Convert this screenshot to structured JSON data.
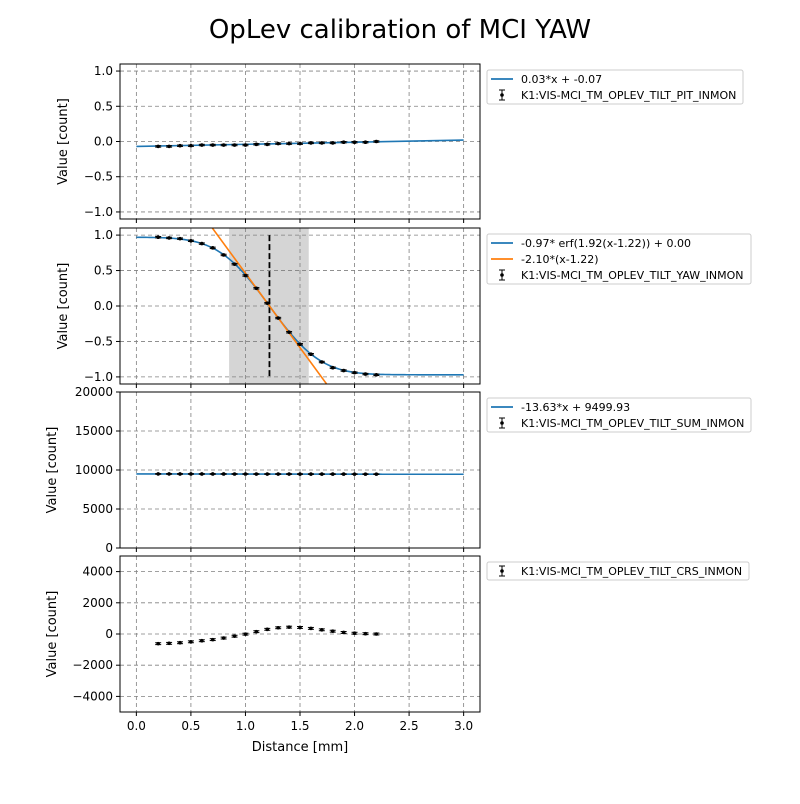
{
  "figure": {
    "title": "OpLev calibration of MCI YAW",
    "xlabel": "Distance [mm]"
  },
  "chart_data": [
    {
      "type": "line",
      "name": "pit",
      "ylabel": "Value [count]",
      "xlim": [
        -0.15,
        3.15
      ],
      "ylim": [
        -1.1,
        1.1
      ],
      "xticks": [
        0.0,
        0.5,
        1.0,
        1.5,
        2.0,
        2.5,
        3.0
      ],
      "yticks": [
        -1.0,
        -0.5,
        0.0,
        0.5,
        1.0
      ],
      "ytick_labels": [
        "−1.0",
        "−0.5",
        "0.0",
        "0.5",
        "1.0"
      ],
      "grid": true,
      "legend_position": "outside-right-top",
      "x": [
        0.2,
        0.3,
        0.4,
        0.5,
        0.6,
        0.7,
        0.8,
        0.9,
        1.0,
        1.1,
        1.2,
        1.3,
        1.4,
        1.5,
        1.6,
        1.7,
        1.8,
        1.9,
        2.0,
        2.1,
        2.2
      ],
      "series": [
        {
          "name": "K1:VIS-MCI_TM_OPLEV_TILT_PIT_INMON",
          "kind": "errorbar",
          "color": "#000000",
          "values": [
            -0.07,
            -0.07,
            -0.06,
            -0.06,
            -0.05,
            -0.05,
            -0.05,
            -0.05,
            -0.05,
            -0.04,
            -0.04,
            -0.03,
            -0.03,
            -0.03,
            -0.02,
            -0.02,
            -0.02,
            -0.01,
            -0.01,
            -0.01,
            0.0
          ],
          "errors": [
            0.01,
            0.01,
            0.01,
            0.01,
            0.01,
            0.01,
            0.01,
            0.01,
            0.01,
            0.01,
            0.01,
            0.01,
            0.01,
            0.01,
            0.01,
            0.01,
            0.01,
            0.01,
            0.01,
            0.01,
            0.01
          ]
        },
        {
          "name": "0.03*x + -0.07",
          "kind": "fit-line",
          "color": "#1f77b4",
          "x": [
            0.0,
            3.0
          ],
          "values": [
            -0.07,
            0.02
          ]
        }
      ]
    },
    {
      "type": "line",
      "name": "yaw",
      "ylabel": "Value [count]",
      "xlim": [
        -0.15,
        3.15
      ],
      "ylim": [
        -1.1,
        1.1
      ],
      "xticks": [
        0.0,
        0.5,
        1.0,
        1.5,
        2.0,
        2.5,
        3.0
      ],
      "yticks": [
        -1.0,
        -0.5,
        0.0,
        0.5,
        1.0
      ],
      "ytick_labels": [
        "−1.0",
        "−0.5",
        "0.0",
        "0.5",
        "1.0"
      ],
      "grid": true,
      "legend_position": "outside-right-top",
      "shaded_region": [
        0.85,
        1.58
      ],
      "vline_x": 1.22,
      "vline_range": [
        -1.0,
        1.0
      ],
      "x": [
        0.2,
        0.3,
        0.4,
        0.5,
        0.6,
        0.7,
        0.8,
        0.9,
        1.0,
        1.1,
        1.2,
        1.3,
        1.4,
        1.5,
        1.6,
        1.7,
        1.8,
        1.9,
        2.0,
        2.1,
        2.2
      ],
      "series": [
        {
          "name": "K1:VIS-MCI_TM_OPLEV_TILT_YAW_INMON",
          "kind": "errorbar",
          "color": "#000000",
          "values": [
            0.97,
            0.96,
            0.95,
            0.92,
            0.88,
            0.82,
            0.72,
            0.59,
            0.43,
            0.25,
            0.04,
            -0.17,
            -0.37,
            -0.54,
            -0.68,
            -0.79,
            -0.87,
            -0.91,
            -0.94,
            -0.96,
            -0.97
          ],
          "errors": [
            0.01,
            0.01,
            0.01,
            0.01,
            0.01,
            0.01,
            0.01,
            0.01,
            0.01,
            0.01,
            0.01,
            0.01,
            0.01,
            0.01,
            0.01,
            0.01,
            0.01,
            0.01,
            0.01,
            0.01,
            0.01
          ]
        },
        {
          "name": "-0.97* erf(1.92(x-1.22)) + 0.00",
          "kind": "erf-fit",
          "color": "#1f77b4",
          "amplitude": -0.97,
          "k": 1.92,
          "x0": 1.22,
          "offset": 0.0,
          "xrange": [
            0.0,
            3.0
          ]
        },
        {
          "name": "-2.10*(x-1.22)",
          "kind": "linear-fit",
          "color": "#ff7f0e",
          "slope": -2.1,
          "x0": 1.22,
          "xrange": [
            0.5,
            2.0
          ]
        }
      ]
    },
    {
      "type": "line",
      "name": "sum",
      "ylabel": "Value [count]",
      "xlim": [
        -0.15,
        3.15
      ],
      "ylim": [
        0,
        20000
      ],
      "xticks": [
        0.0,
        0.5,
        1.0,
        1.5,
        2.0,
        2.5,
        3.0
      ],
      "yticks": [
        0,
        5000,
        10000,
        15000,
        20000
      ],
      "ytick_labels": [
        "0",
        "5000",
        "10000",
        "15000",
        "20000"
      ],
      "grid": true,
      "legend_position": "outside-right-top",
      "x": [
        0.2,
        0.3,
        0.4,
        0.5,
        0.6,
        0.7,
        0.8,
        0.9,
        1.0,
        1.1,
        1.2,
        1.3,
        1.4,
        1.5,
        1.6,
        1.7,
        1.8,
        1.9,
        2.0,
        2.1,
        2.2
      ],
      "series": [
        {
          "name": "K1:VIS-MCI_TM_OPLEV_TILT_SUM_INMON",
          "kind": "errorbar",
          "color": "#000000",
          "values": [
            9497,
            9496,
            9495,
            9494,
            9492,
            9490,
            9489,
            9488,
            9486,
            9485,
            9483,
            9482,
            9481,
            9479,
            9478,
            9476,
            9475,
            9474,
            9472,
            9471,
            9470
          ],
          "errors": [
            40,
            40,
            40,
            40,
            40,
            40,
            40,
            40,
            40,
            40,
            40,
            40,
            40,
            40,
            40,
            40,
            40,
            40,
            40,
            40,
            40
          ]
        },
        {
          "name": "-13.63*x + 9499.93",
          "kind": "fit-line",
          "color": "#1f77b4",
          "x": [
            0.0,
            3.0
          ],
          "values": [
            9499.93,
            9459.04
          ]
        }
      ]
    },
    {
      "type": "scatter",
      "name": "crs",
      "ylabel": "Value [count]",
      "xlim": [
        -0.15,
        3.15
      ],
      "ylim": [
        -5000,
        5000
      ],
      "xticks": [
        0.0,
        0.5,
        1.0,
        1.5,
        2.0,
        2.5,
        3.0
      ],
      "xtick_labels": [
        "0.0",
        "0.5",
        "1.0",
        "1.5",
        "2.0",
        "2.5",
        "3.0"
      ],
      "yticks": [
        -4000,
        -2000,
        0,
        2000,
        4000
      ],
      "ytick_labels": [
        "−4000",
        "−2000",
        "0",
        "2000",
        "4000"
      ],
      "grid": true,
      "legend_position": "outside-right-top",
      "x": [
        0.2,
        0.3,
        0.4,
        0.5,
        0.6,
        0.7,
        0.8,
        0.9,
        1.0,
        1.1,
        1.2,
        1.3,
        1.4,
        1.5,
        1.6,
        1.7,
        1.8,
        1.9,
        2.0,
        2.1,
        2.2
      ],
      "series": [
        {
          "name": "K1:VIS-MCI_TM_OPLEV_TILT_CRS_INMON",
          "kind": "errorbar",
          "color": "#000000",
          "values": [
            -620,
            -600,
            -560,
            -500,
            -430,
            -360,
            -260,
            -140,
            -10,
            150,
            300,
            400,
            440,
            420,
            360,
            270,
            180,
            100,
            50,
            20,
            0
          ],
          "errors": [
            60,
            60,
            60,
            60,
            60,
            60,
            60,
            60,
            60,
            60,
            60,
            60,
            60,
            60,
            60,
            60,
            60,
            60,
            60,
            60,
            60
          ]
        }
      ]
    }
  ]
}
